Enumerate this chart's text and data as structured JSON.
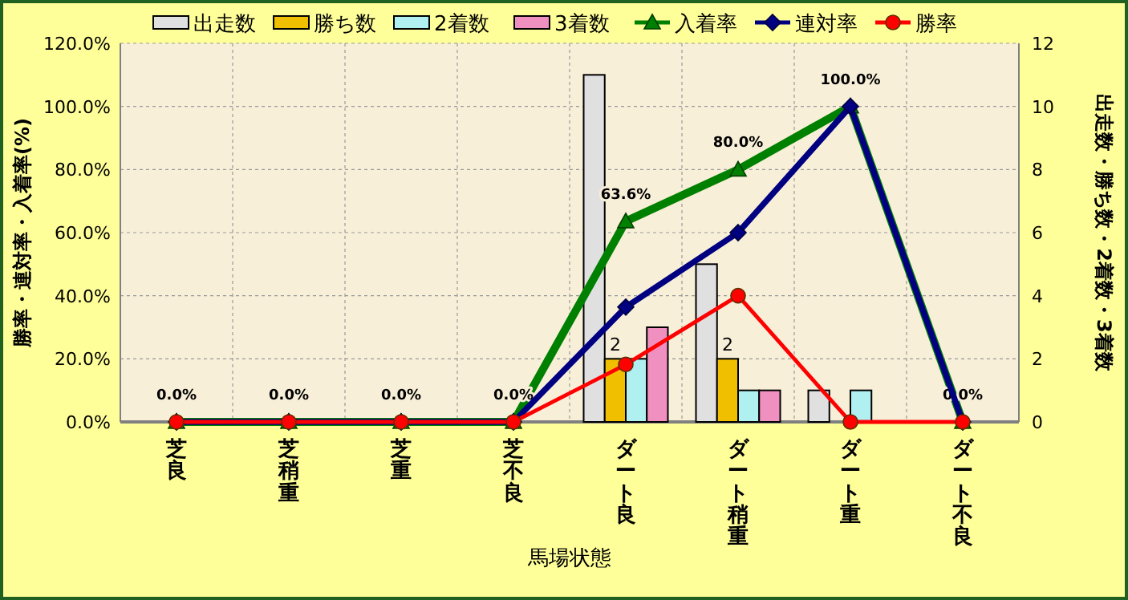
{
  "chart_data": {
    "type": "bar",
    "xlabel": "馬場状態",
    "ylabel": "勝率・連対率・入着率(%)",
    "y2label": "出走数・勝ち数・2着数・3着数",
    "categories": [
      "芝良",
      "芝稍重",
      "芝重",
      "芝不良",
      "ダート良",
      "ダート稍重",
      "ダート重",
      "ダート不良"
    ],
    "series": [
      {
        "name": "出走数",
        "axis": "y2",
        "color": "#e0e0e0",
        "values": [
          0,
          0,
          0,
          0,
          11,
          5,
          1,
          0
        ]
      },
      {
        "name": "勝ち数",
        "axis": "y2",
        "color": "#f0c000",
        "values": [
          0,
          0,
          0,
          0,
          2,
          2,
          0,
          0
        ],
        "value_labels": [
          null,
          null,
          null,
          null,
          "2",
          "2",
          null,
          null
        ]
      },
      {
        "name": "2着数",
        "axis": "y2",
        "color": "#b0f0f0",
        "values": [
          0,
          0,
          0,
          0,
          2,
          1,
          1,
          0
        ]
      },
      {
        "name": "3着数",
        "axis": "y2",
        "color": "#f090c0",
        "values": [
          0,
          0,
          0,
          0,
          3,
          1,
          0,
          0
        ]
      },
      {
        "name": "入着率",
        "type": "line",
        "color": "#008000",
        "marker": "triangle",
        "values": [
          0,
          0,
          0,
          0,
          63.6,
          80,
          100,
          0
        ],
        "value_labels": [
          "0.0%",
          "0.0%",
          "0.0%",
          "0.0%",
          "63.6%",
          "80.0%",
          "100.0%",
          "0.0%"
        ]
      },
      {
        "name": "連対率",
        "type": "line",
        "color": "#000080",
        "marker": "diamond",
        "values": [
          0,
          0,
          0,
          0,
          36.4,
          60,
          100,
          0
        ]
      },
      {
        "name": "勝率",
        "type": "line",
        "color": "#ff0000",
        "marker": "circle",
        "values": [
          0,
          0,
          0,
          0,
          18.2,
          40,
          0,
          0
        ]
      }
    ],
    "ylim": [
      0,
      120
    ],
    "yticks": [
      {
        "value": 0,
        "label": "0.0%"
      },
      {
        "value": 20,
        "label": "20.0%"
      },
      {
        "value": 40,
        "label": "40.0%"
      },
      {
        "value": 60,
        "label": "60.0%"
      },
      {
        "value": 80,
        "label": "80.0%"
      },
      {
        "value": 100,
        "label": "100.0%"
      },
      {
        "value": 120,
        "label": "120.0%"
      }
    ],
    "y2lim": [
      0,
      12
    ],
    "y2ticks": [
      0,
      2,
      4,
      6,
      8,
      10,
      12
    ],
    "grid": true,
    "legend": "top"
  }
}
